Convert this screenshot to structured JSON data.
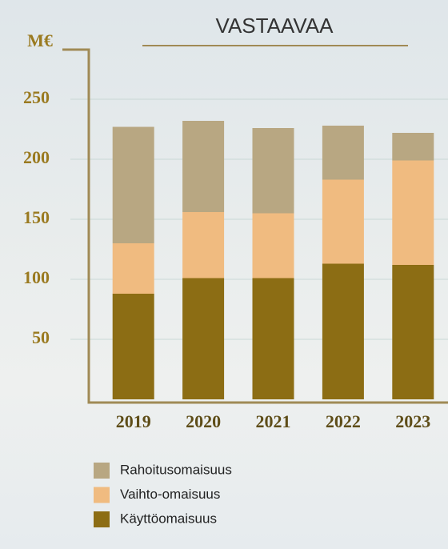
{
  "chart_data": {
    "type": "stacked-bar",
    "title": "VASTAAVAA",
    "y_label": "M€",
    "categories": [
      "2019",
      "2020",
      "2021",
      "2022",
      "2023"
    ],
    "series": [
      {
        "name": "Käyttöomaisuus",
        "color": "#8c6d14",
        "values": [
          88,
          101,
          101,
          113,
          112
        ]
      },
      {
        "name": "Vaihto-omaisuus",
        "color": "#f0bb80",
        "values": [
          42,
          55,
          54,
          70,
          87
        ]
      },
      {
        "name": "Rahoitusomaisuus",
        "color": "#b8a782",
        "values": [
          97,
          76,
          71,
          45,
          23
        ]
      }
    ],
    "ylim": [
      0,
      290
    ],
    "yticks": [
      50,
      100,
      150,
      200,
      250
    ],
    "grid": true
  }
}
